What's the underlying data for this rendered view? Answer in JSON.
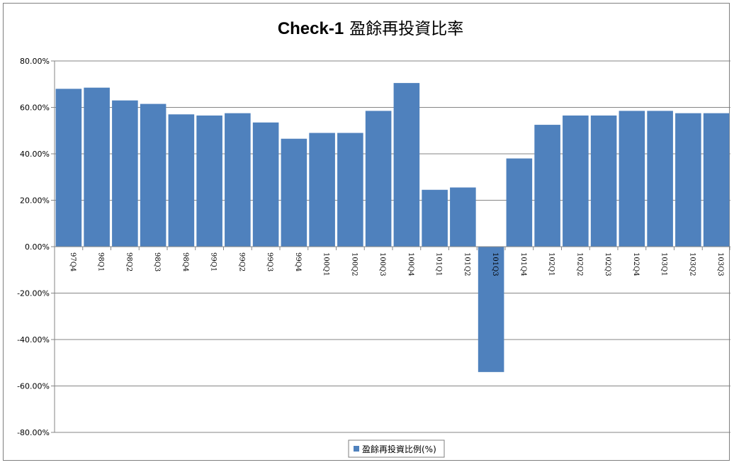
{
  "chart_data": {
    "type": "bar",
    "title": "Check-1",
    "subtitle": "盈餘再投資比率",
    "categories": [
      "97Q4",
      "98Q1",
      "98Q2",
      "98Q3",
      "98Q4",
      "99Q1",
      "99Q2",
      "99Q3",
      "99Q4",
      "100Q1",
      "100Q2",
      "100Q3",
      "100Q4",
      "101Q1",
      "101Q2",
      "101Q3",
      "101Q4",
      "102Q1",
      "102Q2",
      "102Q3",
      "102Q4",
      "103Q1",
      "103Q2",
      "103Q3"
    ],
    "series": [
      {
        "name": "盈餘再投資比例(%)",
        "color": "#4f81bd",
        "values": [
          68,
          68.5,
          63,
          61.5,
          57,
          56.5,
          57.5,
          53.5,
          46.5,
          49,
          49,
          58.5,
          70.5,
          24.5,
          25.5,
          -54,
          38,
          52.5,
          56.5,
          56.5,
          58.5,
          58.5,
          57.5,
          57.5
        ]
      }
    ],
    "yticks": [
      "80.00%",
      "60.00%",
      "40.00%",
      "20.00%",
      "0.00%",
      "-20.00%",
      "-40.00%",
      "-60.00%",
      "-80.00%"
    ],
    "ylim": [
      -80,
      80
    ],
    "grid": true,
    "legend": "bottom"
  }
}
